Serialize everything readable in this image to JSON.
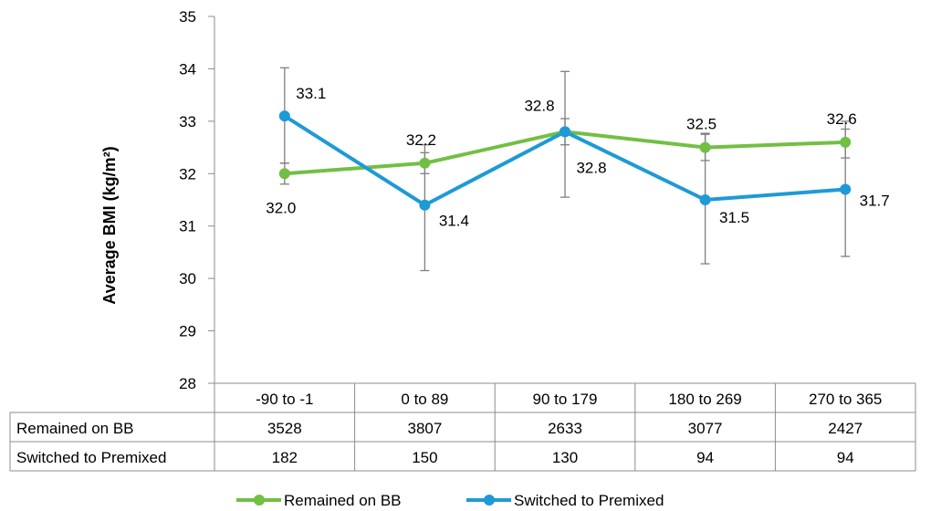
{
  "chart_data": {
    "type": "line",
    "ylabel": "Average BMI (kg/m²)",
    "ylim": [
      28,
      35
    ],
    "yticks": [
      28,
      29,
      30,
      31,
      32,
      33,
      34,
      35
    ],
    "categories": [
      "-90 to -1",
      "0 to 89",
      "90 to 179",
      "180 to 269",
      "270 to 365"
    ],
    "grid": false,
    "legend_position": "bottom",
    "series": [
      {
        "name": "Remained on BB",
        "color": "#72BF44",
        "values": [
          32.0,
          32.2,
          32.8,
          32.5,
          32.6
        ],
        "labels": [
          "32.0",
          "32.2",
          "32.8",
          "32.5",
          "32.6"
        ],
        "error_low": [
          31.8,
          32.0,
          32.55,
          32.25,
          32.3
        ],
        "error_high": [
          32.2,
          32.4,
          33.05,
          32.75,
          32.85
        ]
      },
      {
        "name": "Switched to Premixed",
        "color": "#1E9AD6",
        "values": [
          33.1,
          31.4,
          32.8,
          31.5,
          31.7
        ],
        "labels": [
          "33.1",
          "31.4",
          "32.8",
          "31.5",
          "31.7"
        ],
        "error_low": [
          32.2,
          30.15,
          31.55,
          30.28,
          30.42
        ],
        "error_high": [
          34.02,
          32.55,
          33.95,
          32.77,
          33.0
        ]
      }
    ],
    "table": {
      "rows": [
        {
          "label": "Remained on BB",
          "values": [
            "3528",
            "3807",
            "2633",
            "3077",
            "2427"
          ]
        },
        {
          "label": "Switched to Premixed",
          "values": [
            "182",
            "150",
            "130",
            "94",
            "94"
          ]
        }
      ]
    }
  }
}
